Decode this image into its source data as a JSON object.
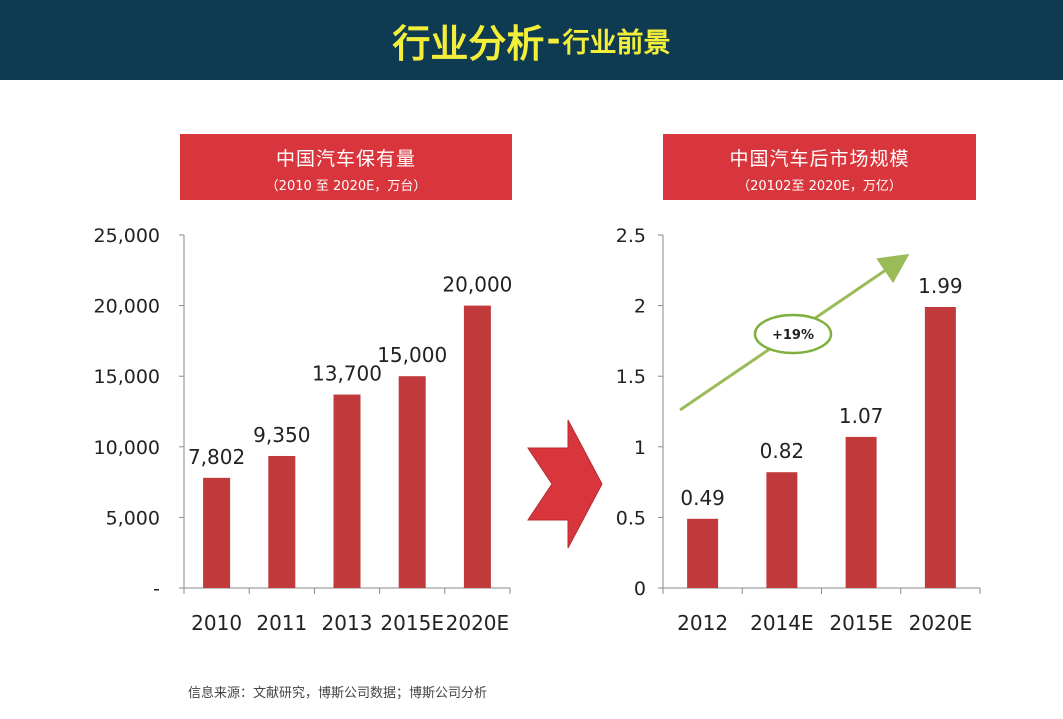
{
  "header": {
    "title": "行业分析",
    "separator": "-",
    "subtitle": "行业前景"
  },
  "source_note": "信息来源：文献研究，博斯公司数据；博斯公司分析",
  "growth_label": "+19%",
  "colors": {
    "header_bg": "#0e3a52",
    "header_text": "#f2ee3a",
    "bar": "#c0393b",
    "banner": "#d8353c",
    "arrow": "#d8353c",
    "trend": "#9bbb59"
  },
  "chart_data": [
    {
      "type": "bar",
      "title": "中国汽车保有量",
      "subtitle": "（2010 至 2020E，万台）",
      "categories": [
        "2010",
        "2011",
        "2013",
        "2015E",
        "2020E"
      ],
      "values": [
        7802,
        9350,
        13700,
        15000,
        20000
      ],
      "value_labels": [
        "7,802",
        "9,350",
        "13,700",
        "15,000",
        "20,000"
      ],
      "y_ticks": [
        "-",
        "5,000",
        "10,000",
        "15,000",
        "20,000",
        "25,000"
      ],
      "ylim": [
        0,
        25000
      ],
      "xlabel": "",
      "ylabel": ""
    },
    {
      "type": "bar",
      "title": "中国汽车后市场规模",
      "subtitle": "（20102至 2020E，万亿）",
      "categories": [
        "2012",
        "2014E",
        "2015E",
        "2020E"
      ],
      "values": [
        0.49,
        0.82,
        1.07,
        1.99
      ],
      "value_labels": [
        "0.49",
        "0.82",
        "1.07",
        "1.99"
      ],
      "y_ticks": [
        "0",
        "0.5",
        "1",
        "1.5",
        "2",
        "2.5"
      ],
      "ylim": [
        0,
        2.5
      ],
      "xlabel": "",
      "ylabel": ""
    }
  ]
}
